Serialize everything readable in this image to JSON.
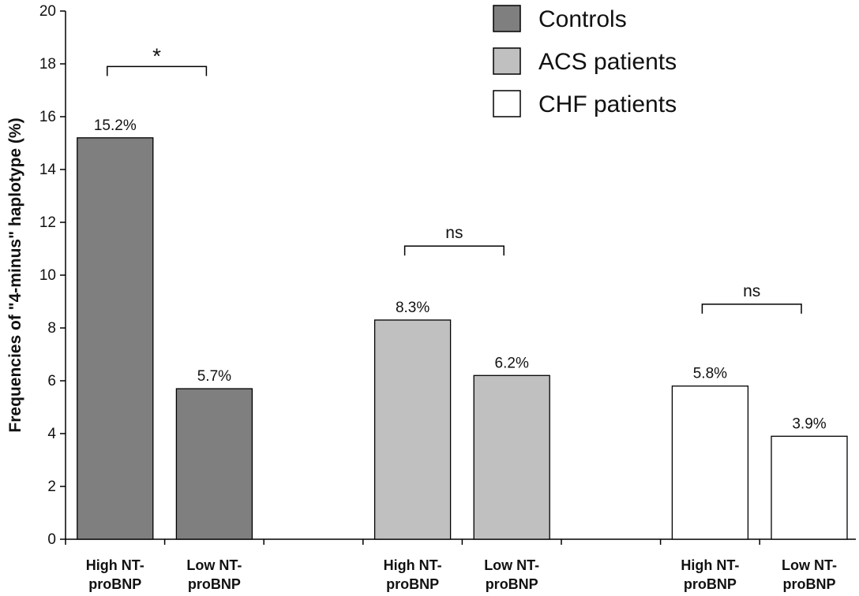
{
  "chart_data": {
    "type": "bar",
    "title": "",
    "xlabel": "",
    "ylabel": "Frequencies of \"4-minus\" haplotype (%)",
    "ylim": [
      0,
      20
    ],
    "yticks": [
      0,
      2,
      4,
      6,
      8,
      10,
      12,
      14,
      16,
      18,
      20
    ],
    "grid": false,
    "legend": {
      "position": "top-right",
      "entries": [
        {
          "name": "Controls",
          "color": "#7f7f7f"
        },
        {
          "name": "ACS patients",
          "color": "#c0c0c0"
        },
        {
          "name": "CHF patients",
          "color": "#ffffff"
        }
      ]
    },
    "groups": [
      {
        "series": "Controls",
        "color": "#7f7f7f",
        "bars": [
          {
            "category": [
              "High NT-",
              "proBNP"
            ],
            "value": 15.2,
            "label": "15.2%"
          },
          {
            "category": [
              "Low NT-",
              "proBNP"
            ],
            "value": 5.7,
            "label": "5.7%"
          }
        ],
        "significance": "*",
        "bracket_y": 17.9
      },
      {
        "series": "ACS patients",
        "color": "#c0c0c0",
        "bars": [
          {
            "category": [
              "High NT-",
              "proBNP"
            ],
            "value": 8.3,
            "label": "8.3%"
          },
          {
            "category": [
              "Low NT-",
              "proBNP"
            ],
            "value": 6.2,
            "label": "6.2%"
          }
        ],
        "significance": "ns",
        "bracket_y": 11.1
      },
      {
        "series": "CHF patients",
        "color": "#ffffff",
        "bars": [
          {
            "category": [
              "High NT-",
              "proBNP"
            ],
            "value": 5.8,
            "label": "5.8%"
          },
          {
            "category": [
              "Low NT-",
              "proBNP"
            ],
            "value": 3.9,
            "label": "3.9%"
          }
        ],
        "significance": "ns",
        "bracket_y": 8.9
      }
    ]
  }
}
